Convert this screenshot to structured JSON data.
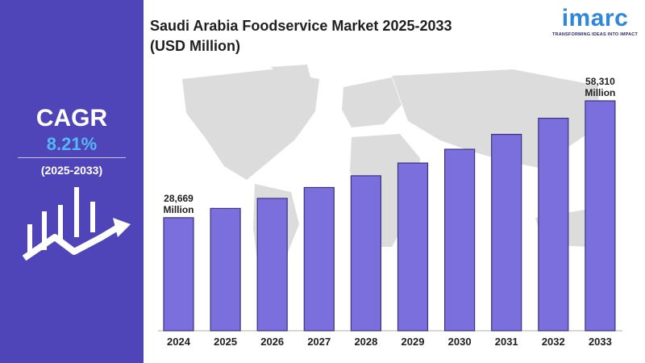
{
  "title_line1": "Saudi Arabia Foodservice Market 2025-2033",
  "title_line2": "(USD Million)",
  "logo": {
    "word": "imarc",
    "tagline": "TRANSFORMING IDEAS INTO IMPACT"
  },
  "cagr": {
    "label": "CAGR",
    "value": "8.21%",
    "period": "(2025-2033)"
  },
  "colors": {
    "panel": "#4f45b8",
    "bar": "#7b6fde",
    "accent": "#55b8f5",
    "logo": "#2e86de"
  },
  "chart_data": {
    "type": "bar",
    "categories": [
      "2024",
      "2025",
      "2026",
      "2027",
      "2028",
      "2029",
      "2030",
      "2031",
      "2032",
      "2033"
    ],
    "values": [
      28669,
      31022,
      33569,
      36325,
      39307,
      42534,
      46026,
      49805,
      53894,
      58310
    ],
    "labels": [
      {
        "index": 0,
        "value": "28,669",
        "unit": "Million"
      },
      {
        "index": 9,
        "value": "58,310",
        "unit": "Million"
      }
    ]
  }
}
